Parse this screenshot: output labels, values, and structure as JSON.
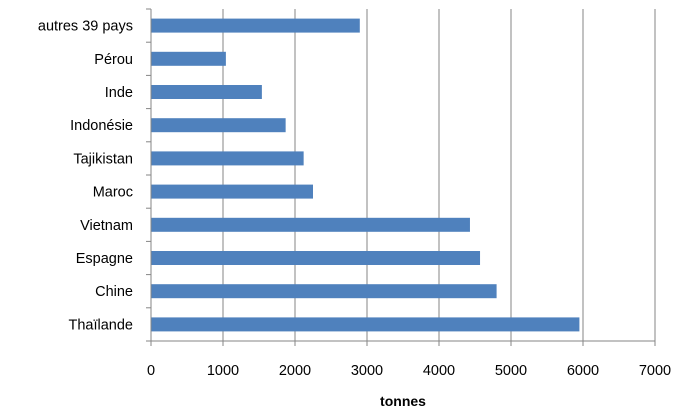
{
  "chart_data": {
    "type": "bar",
    "orientation": "horizontal",
    "categories": [
      "Thaïlande",
      "Chine",
      "Espagne",
      "Vietnam",
      "Maroc",
      "Tajikistan",
      "Indonésie",
      "Inde",
      "Pérou",
      "autres 39 pays"
    ],
    "values": [
      5950,
      4800,
      4570,
      4430,
      2250,
      2120,
      1870,
      1540,
      1040,
      2900
    ],
    "xlabel": "tonnes",
    "ylabel": "",
    "xlim": [
      0,
      7000
    ],
    "x_ticks": [
      "0",
      "1000",
      "2000",
      "3000",
      "4000",
      "5000",
      "6000",
      "7000"
    ],
    "grid": "vertical major gridlines",
    "legend": "none",
    "colors": {
      "bar": "#4F81BD",
      "grid": "#868686",
      "axis": "#868686"
    }
  }
}
